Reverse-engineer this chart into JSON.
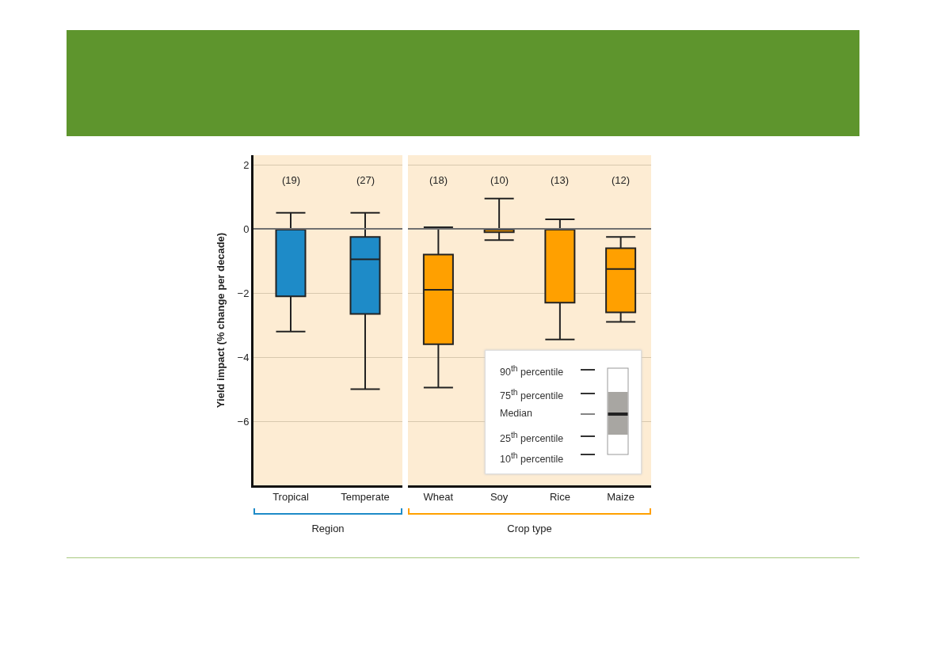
{
  "chart_data": [
    {
      "type": "box",
      "ylabel": "Yield impact (% change per decade)",
      "xlabel": "Region",
      "categories": [
        "Tropical",
        "Temperate"
      ],
      "series": [
        {
          "color": "#1e8bc8",
          "boxes": [
            {
              "low": -3.2,
              "q1": -2.1,
              "median": 0,
              "q3": 0,
              "high": 0.5
            },
            {
              "low": -5.0,
              "q1": -2.65,
              "median": -0.95,
              "q3": -0.25,
              "high": 0.5
            }
          ]
        }
      ],
      "ylim": [
        -8,
        2.3
      ],
      "yticks": [
        -6,
        -4,
        -2,
        0,
        2
      ],
      "grid": "y",
      "ref_lines": [
        {
          "axis": "y",
          "value": 0,
          "color": "#707070"
        }
      ],
      "annotations": [
        "(19)",
        "(27)"
      ]
    },
    {
      "type": "box",
      "xlabel": "Crop type",
      "categories": [
        "Wheat",
        "Soy",
        "Rice",
        "Maize"
      ],
      "series": [
        {
          "color": "#ffa000",
          "boxes": [
            {
              "low": -4.95,
              "q1": -3.6,
              "median": -1.9,
              "q3": -0.8,
              "high": 0.05
            },
            {
              "low": -0.35,
              "q1": -0.1,
              "median": 0,
              "q3": 0,
              "high": 0.95
            },
            {
              "low": -3.45,
              "q1": -2.3,
              "median": 0,
              "q3": 0,
              "high": 0.3
            },
            {
              "low": -2.9,
              "q1": -2.6,
              "median": -1.25,
              "q3": -0.6,
              "high": -0.25
            }
          ]
        }
      ],
      "ylim": [
        -8,
        2.3
      ],
      "yticks": [
        -6,
        -4,
        -2,
        0,
        2
      ],
      "grid": "y",
      "tick_labels": "x",
      "ref_lines": [
        {
          "axis": "y",
          "value": 0,
          "color": "#707070"
        }
      ],
      "annotations": [
        "(18)",
        "(10)",
        "(13)",
        "(12)",
        "90$^{th}$ percentile",
        "75$^{th}$ percentile",
        "Median",
        "25$^{th}$ percentile",
        "10$^{th}$ percentile"
      ]
    }
  ]
}
